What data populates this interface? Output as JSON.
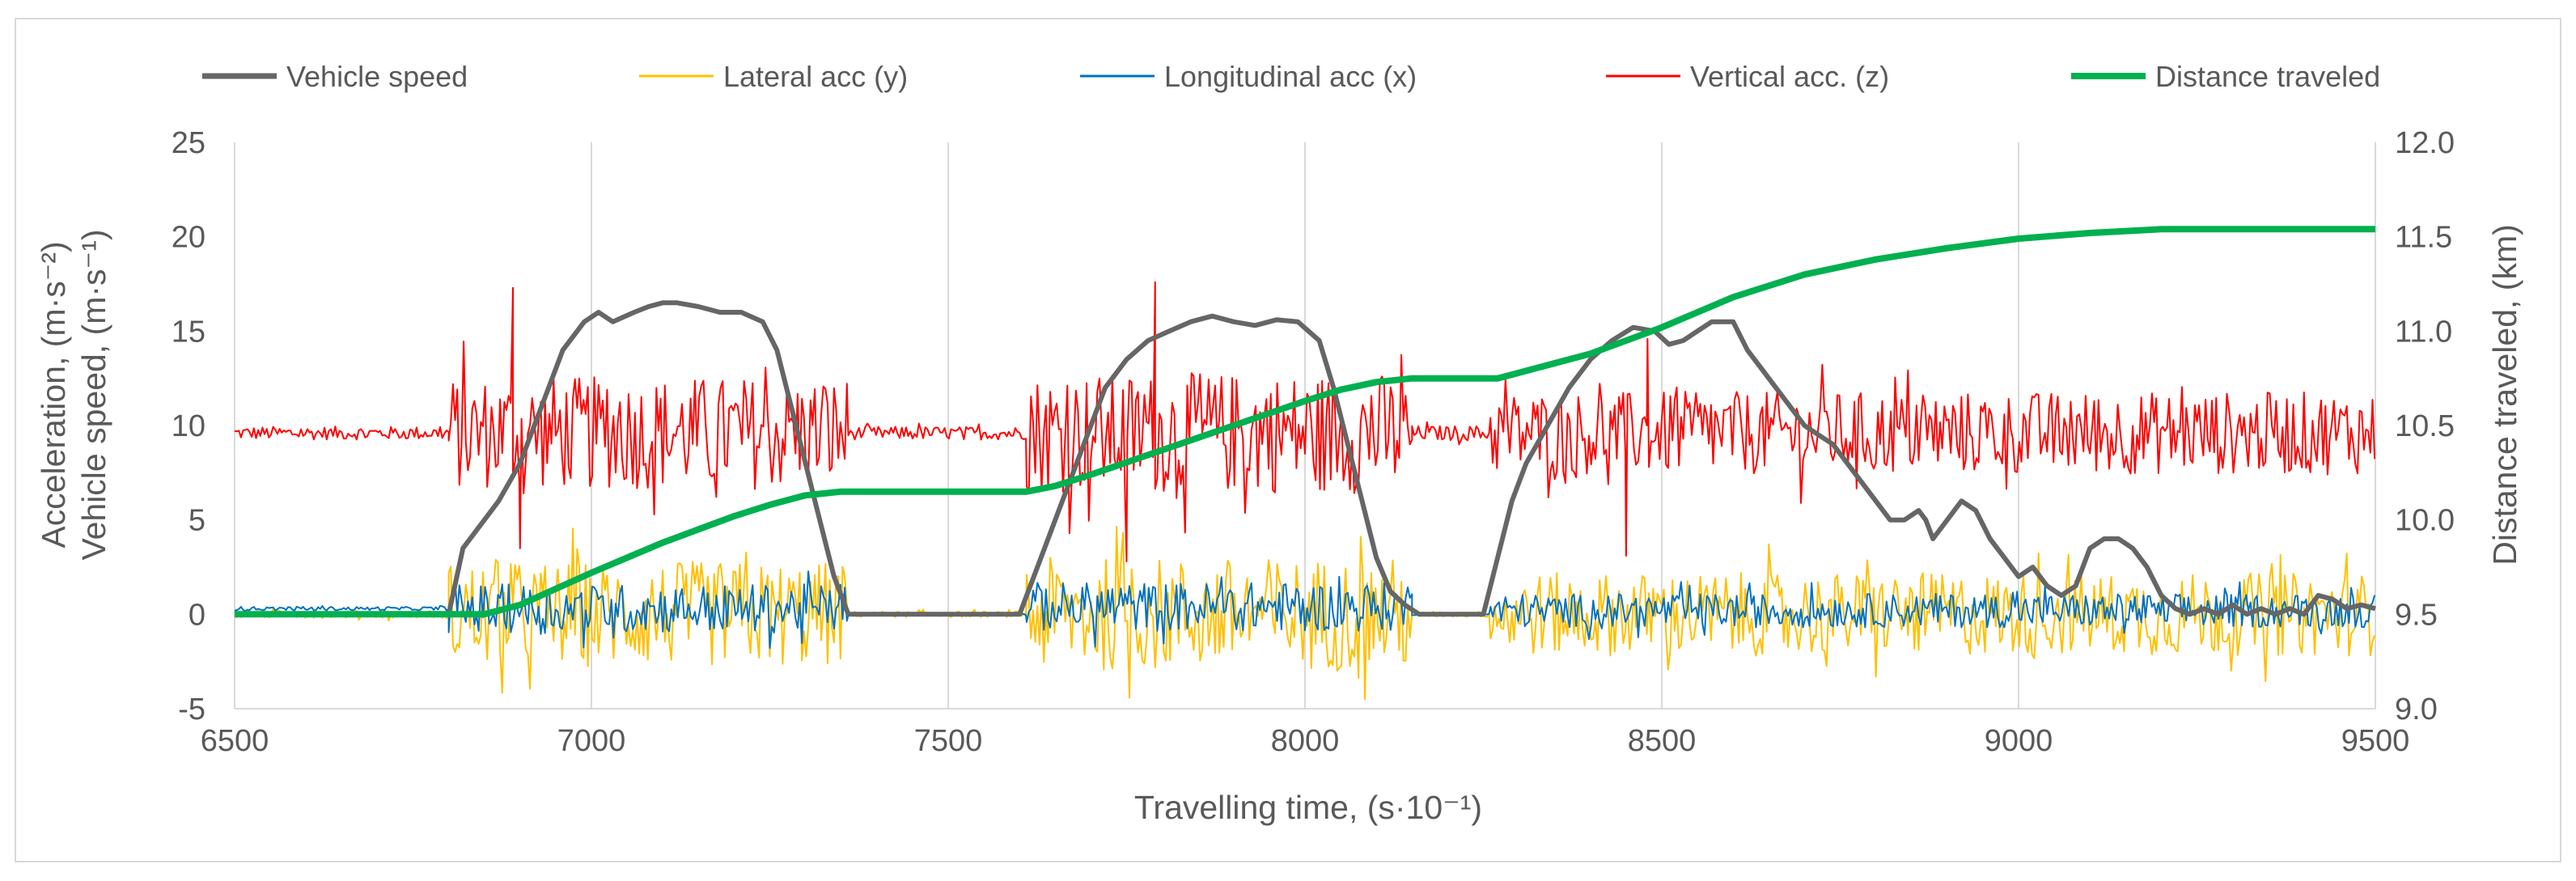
{
  "chart_data": {
    "type": "line",
    "title": "",
    "xlabel": "Travelling time, (s·10⁻¹)",
    "ylabel_left": [
      "Acceleration,  (m·s⁻²)",
      "Vehicle speed, (m·s⁻¹)"
    ],
    "ylabel_right": "Distance traveled, (km)",
    "xlim": [
      6500,
      9500
    ],
    "ylim_left": [
      -5,
      25
    ],
    "ylim_right": [
      9.0,
      12.0
    ],
    "x_ticks": [
      6500,
      7000,
      7500,
      8000,
      8500,
      9000,
      9500
    ],
    "y_ticks_left": [
      -5,
      0,
      5,
      10,
      15,
      20,
      25
    ],
    "y_ticks_right": [
      "9.0",
      "9.5",
      "10.0",
      "10.5",
      "11.0",
      "11.5",
      "12.0"
    ],
    "grid": "vertical",
    "legend_position": "top",
    "series": [
      {
        "name": "Vehicle speed",
        "axis": "left",
        "color": "#666666",
        "kind": "line",
        "x": [
          6500,
          6800,
          6820,
          6850,
          6870,
          6900,
          6930,
          6960,
          6990,
          7010,
          7030,
          7060,
          7080,
          7100,
          7120,
          7150,
          7180,
          7210,
          7240,
          7260,
          7280,
          7300,
          7320,
          7340,
          7360,
          7370,
          7600,
          7630,
          7660,
          7690,
          7720,
          7750,
          7780,
          7810,
          7840,
          7870,
          7900,
          7930,
          7960,
          7990,
          8020,
          8040,
          8060,
          8080,
          8100,
          8120,
          8140,
          8160,
          8250,
          8270,
          8290,
          8310,
          8340,
          8370,
          8400,
          8430,
          8460,
          8490,
          8510,
          8530,
          8550,
          8570,
          8600,
          8620,
          8640,
          8660,
          8680,
          8700,
          8720,
          8740,
          8760,
          8780,
          8800,
          8820,
          8840,
          8860,
          8870,
          8880,
          8900,
          8920,
          8940,
          8960,
          8980,
          9000,
          9020,
          9040,
          9060,
          9080,
          9100,
          9120,
          9140,
          9160,
          9180,
          9200,
          9220,
          9240,
          9260,
          9280,
          9300,
          9320,
          9340,
          9360,
          9380,
          9400,
          9420,
          9440,
          9460,
          9480,
          9500
        ],
        "values": [
          0,
          0,
          3.5,
          5,
          6,
          8,
          11,
          14,
          15.5,
          16,
          15.5,
          16,
          16.3,
          16.5,
          16.5,
          16.3,
          16,
          16,
          15.5,
          14,
          11,
          8,
          5,
          2,
          0,
          0,
          0,
          3,
          6,
          9,
          12,
          13.5,
          14.5,
          15,
          15.5,
          15.8,
          15.5,
          15.3,
          15.6,
          15.5,
          14.5,
          12,
          9,
          6,
          3,
          1.2,
          0.5,
          0,
          0,
          3,
          6,
          8,
          10,
          12,
          13.5,
          14.5,
          15.2,
          15,
          14.3,
          14.5,
          15,
          15.5,
          15.5,
          14,
          13,
          12,
          11,
          10,
          9.5,
          9,
          8,
          7,
          6,
          5,
          5,
          5.5,
          5,
          4,
          5,
          6,
          5.5,
          4,
          3,
          2,
          2.5,
          1.5,
          1,
          1.5,
          3.5,
          4,
          4,
          3.5,
          2.5,
          1,
          0.3,
          0,
          0.3,
          0,
          0.5,
          0,
          0.3,
          0,
          0.3,
          0,
          1,
          0.8,
          0.3,
          0.5,
          0.3
        ]
      },
      {
        "name": "Lateral acc (y)",
        "axis": "left",
        "color": "#FFC000",
        "kind": "noise",
        "segments": [
          {
            "x": [
              6500,
              6800
            ],
            "amplitude": 0.2
          },
          {
            "x": [
              6800,
              7360
            ],
            "amplitude": 2.8
          },
          {
            "x": [
              7360,
              7610
            ],
            "amplitude": 0.15
          },
          {
            "x": [
              7610,
              8150
            ],
            "amplitude": 3.0
          },
          {
            "x": [
              8150,
              8260
            ],
            "amplitude": 0.15
          },
          {
            "x": [
              8260,
              9500
            ],
            "amplitude": 2.2
          }
        ]
      },
      {
        "name": "Longitudinal acc (x)",
        "axis": "left",
        "color": "#0070C0",
        "kind": "noise",
        "segments": [
          {
            "x": [
              6500,
              6800
            ],
            "amplitude": 0.1,
            "offset": 0.3
          },
          {
            "x": [
              6800,
              7360
            ],
            "amplitude": 1.3,
            "offset": 0.3
          },
          {
            "x": [
              7360,
              7610
            ],
            "amplitude": 0.05,
            "offset": 0
          },
          {
            "x": [
              7610,
              8150
            ],
            "amplitude": 1.3,
            "offset": 0.4
          },
          {
            "x": [
              8150,
              8260
            ],
            "amplitude": 0.05,
            "offset": 0
          },
          {
            "x": [
              8260,
              9500
            ],
            "amplitude": 0.9,
            "offset": 0.2
          }
        ]
      },
      {
        "name": "Vertical acc. (z)",
        "axis": "left",
        "color": "#FF0000",
        "kind": "noise",
        "segments": [
          {
            "x": [
              6500,
              6800
            ],
            "amplitude": 0.35,
            "offset": 9.6
          },
          {
            "x": [
              6800,
              7360
            ],
            "amplitude": 3.0,
            "offset": 9.6
          },
          {
            "x": [
              7360,
              7610
            ],
            "amplitude": 0.35,
            "offset": 9.6
          },
          {
            "x": [
              7610,
              8150
            ],
            "amplitude": 3.2,
            "offset": 9.6
          },
          {
            "x": [
              8150,
              8260
            ],
            "amplitude": 0.4,
            "offset": 9.6
          },
          {
            "x": [
              8260,
              9500
            ],
            "amplitude": 2.2,
            "offset": 9.6
          }
        ],
        "spikes": [
          [
            6890,
            17.3
          ],
          [
            6900,
            3.5
          ],
          [
            7750,
            2.8
          ],
          [
            7790,
            17.6
          ],
          [
            7740,
            8.2
          ],
          [
            8450,
            3.1
          ],
          [
            8480,
            14.6
          ]
        ]
      },
      {
        "name": "Distance traveled",
        "axis": "right",
        "color": "#00B050",
        "kind": "line",
        "x": [
          6500,
          6850,
          6900,
          7000,
          7100,
          7200,
          7250,
          7300,
          7350,
          7610,
          7650,
          7700,
          7800,
          7900,
          8000,
          8050,
          8100,
          8150,
          8270,
          8300,
          8400,
          8500,
          8600,
          8700,
          8800,
          8900,
          9000,
          9100,
          9200,
          9500
        ],
        "values": [
          9.5,
          9.5,
          9.55,
          9.72,
          9.88,
          10.02,
          10.08,
          10.13,
          10.15,
          10.15,
          10.18,
          10.24,
          10.37,
          10.5,
          10.63,
          10.69,
          10.73,
          10.75,
          10.75,
          10.78,
          10.88,
          11.02,
          11.18,
          11.3,
          11.38,
          11.44,
          11.49,
          11.52,
          11.54,
          11.54
        ]
      }
    ]
  }
}
